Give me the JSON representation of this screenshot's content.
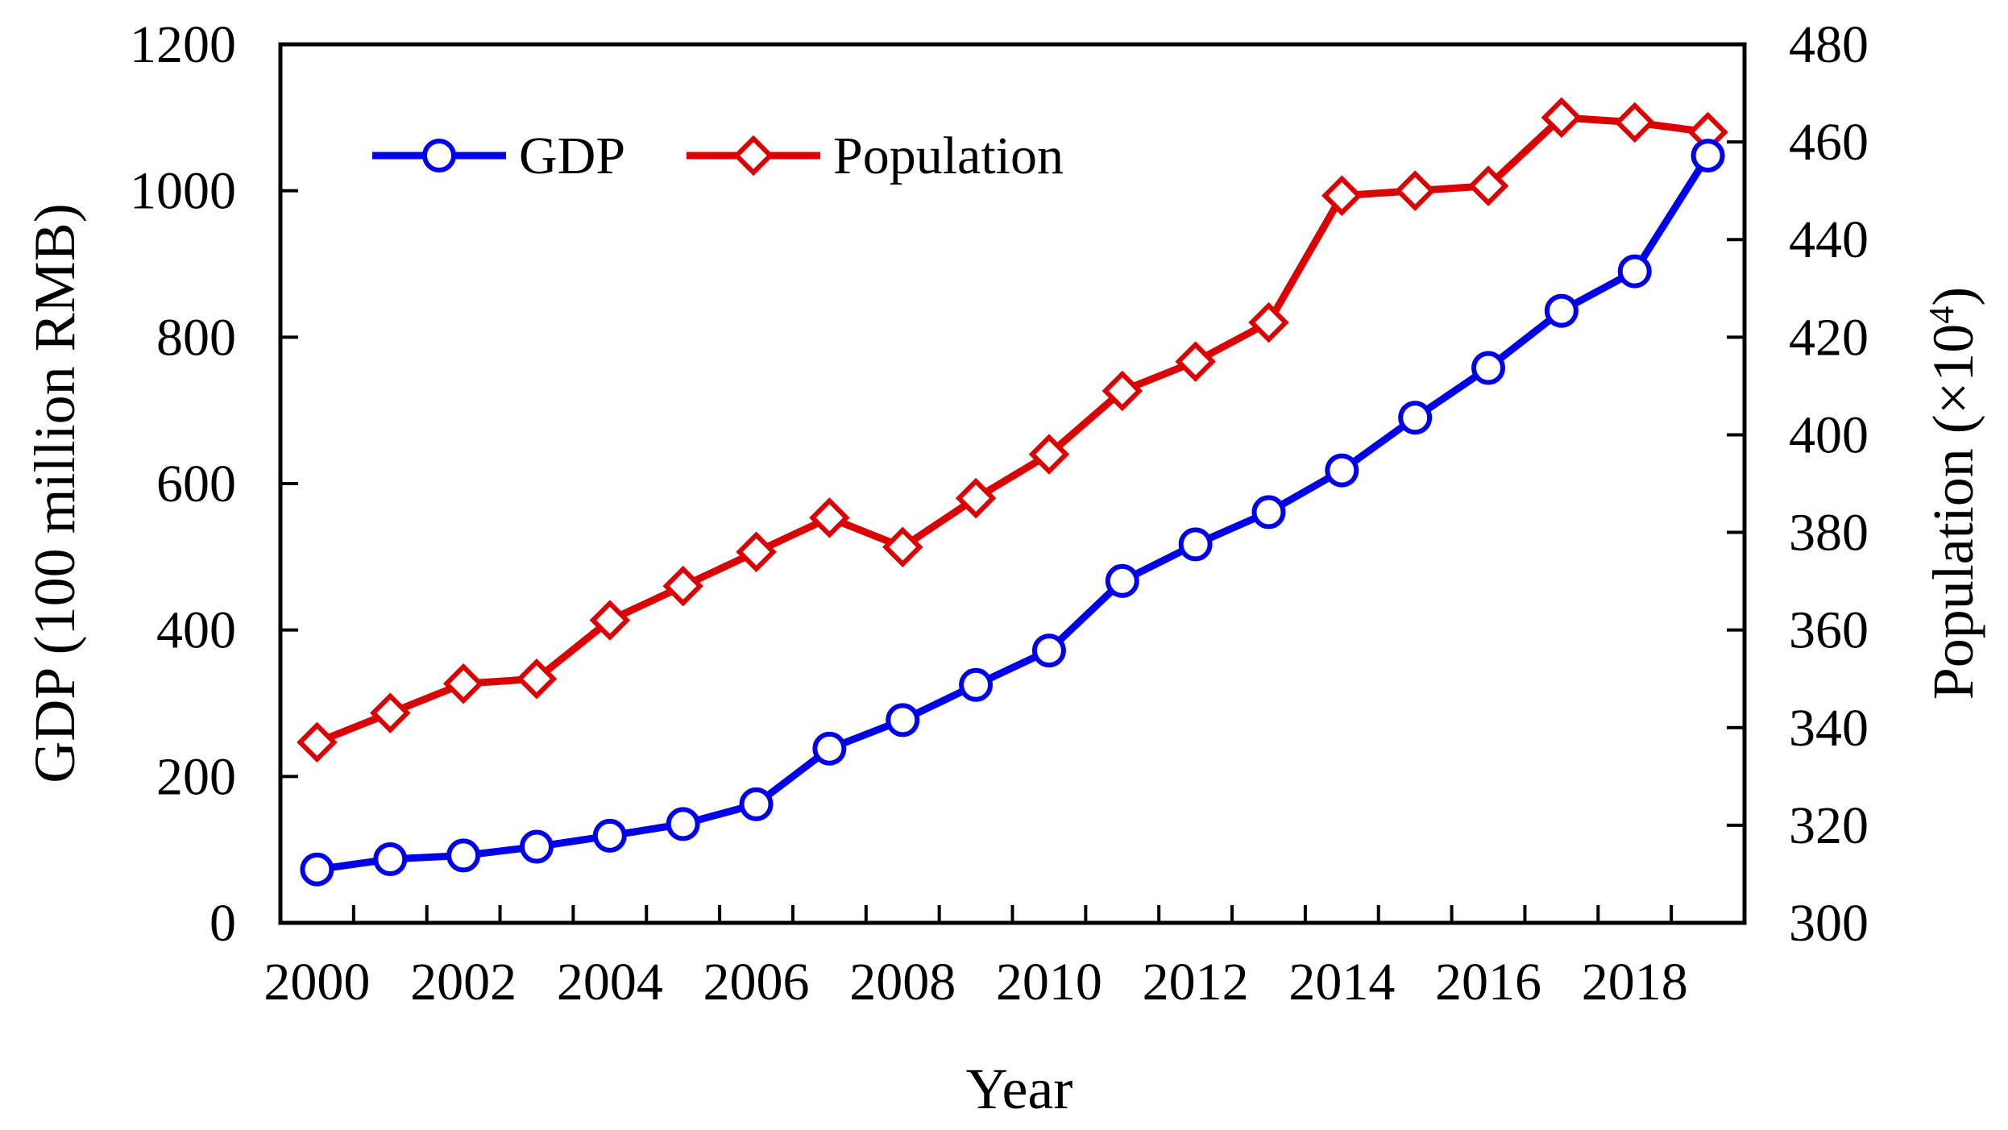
{
  "chart_data": {
    "type": "line",
    "xlabel": "Year",
    "ylabel_left": "GDP (100 million RMB)",
    "ylabel_right_prefix": "Population (",
    "ylabel_right_times": "×10",
    "ylabel_right_exp": "4",
    "ylabel_right_suffix": ")",
    "x": [
      2000,
      2001,
      2002,
      2003,
      2004,
      2005,
      2006,
      2007,
      2008,
      2009,
      2010,
      2011,
      2012,
      2013,
      2014,
      2015,
      2016,
      2017,
      2018,
      2019
    ],
    "x_tick_labels": [
      "2000",
      "2002",
      "2004",
      "2006",
      "2008",
      "2010",
      "2012",
      "2014",
      "2016",
      "2018"
    ],
    "xlim": [
      1999.5,
      2019.5
    ],
    "ylim_left": [
      0,
      1200
    ],
    "y_ticks_left": [
      "0",
      "200",
      "400",
      "600",
      "800",
      "1000",
      "1200"
    ],
    "ylim_right": [
      300,
      480
    ],
    "y_ticks_right": [
      "300",
      "320",
      "340",
      "360",
      "380",
      "400",
      "420",
      "440",
      "460",
      "480"
    ],
    "legend_position": "top-left",
    "series": [
      {
        "name": "GDP",
        "axis": "left",
        "color": "#0000ee",
        "marker": "circle",
        "values": [
          73,
          87,
          92,
          104,
          119,
          135,
          162,
          238,
          277,
          325,
          372,
          467,
          517,
          561,
          618,
          690,
          758,
          836,
          890,
          1048
        ]
      },
      {
        "name": "Population",
        "axis": "right",
        "color": "#dd0000",
        "marker": "diamond",
        "values": [
          337,
          343,
          349,
          350,
          362,
          369,
          376,
          383,
          377,
          387,
          396,
          409,
          415,
          423,
          449,
          450,
          451,
          465,
          464,
          462
        ]
      }
    ]
  }
}
